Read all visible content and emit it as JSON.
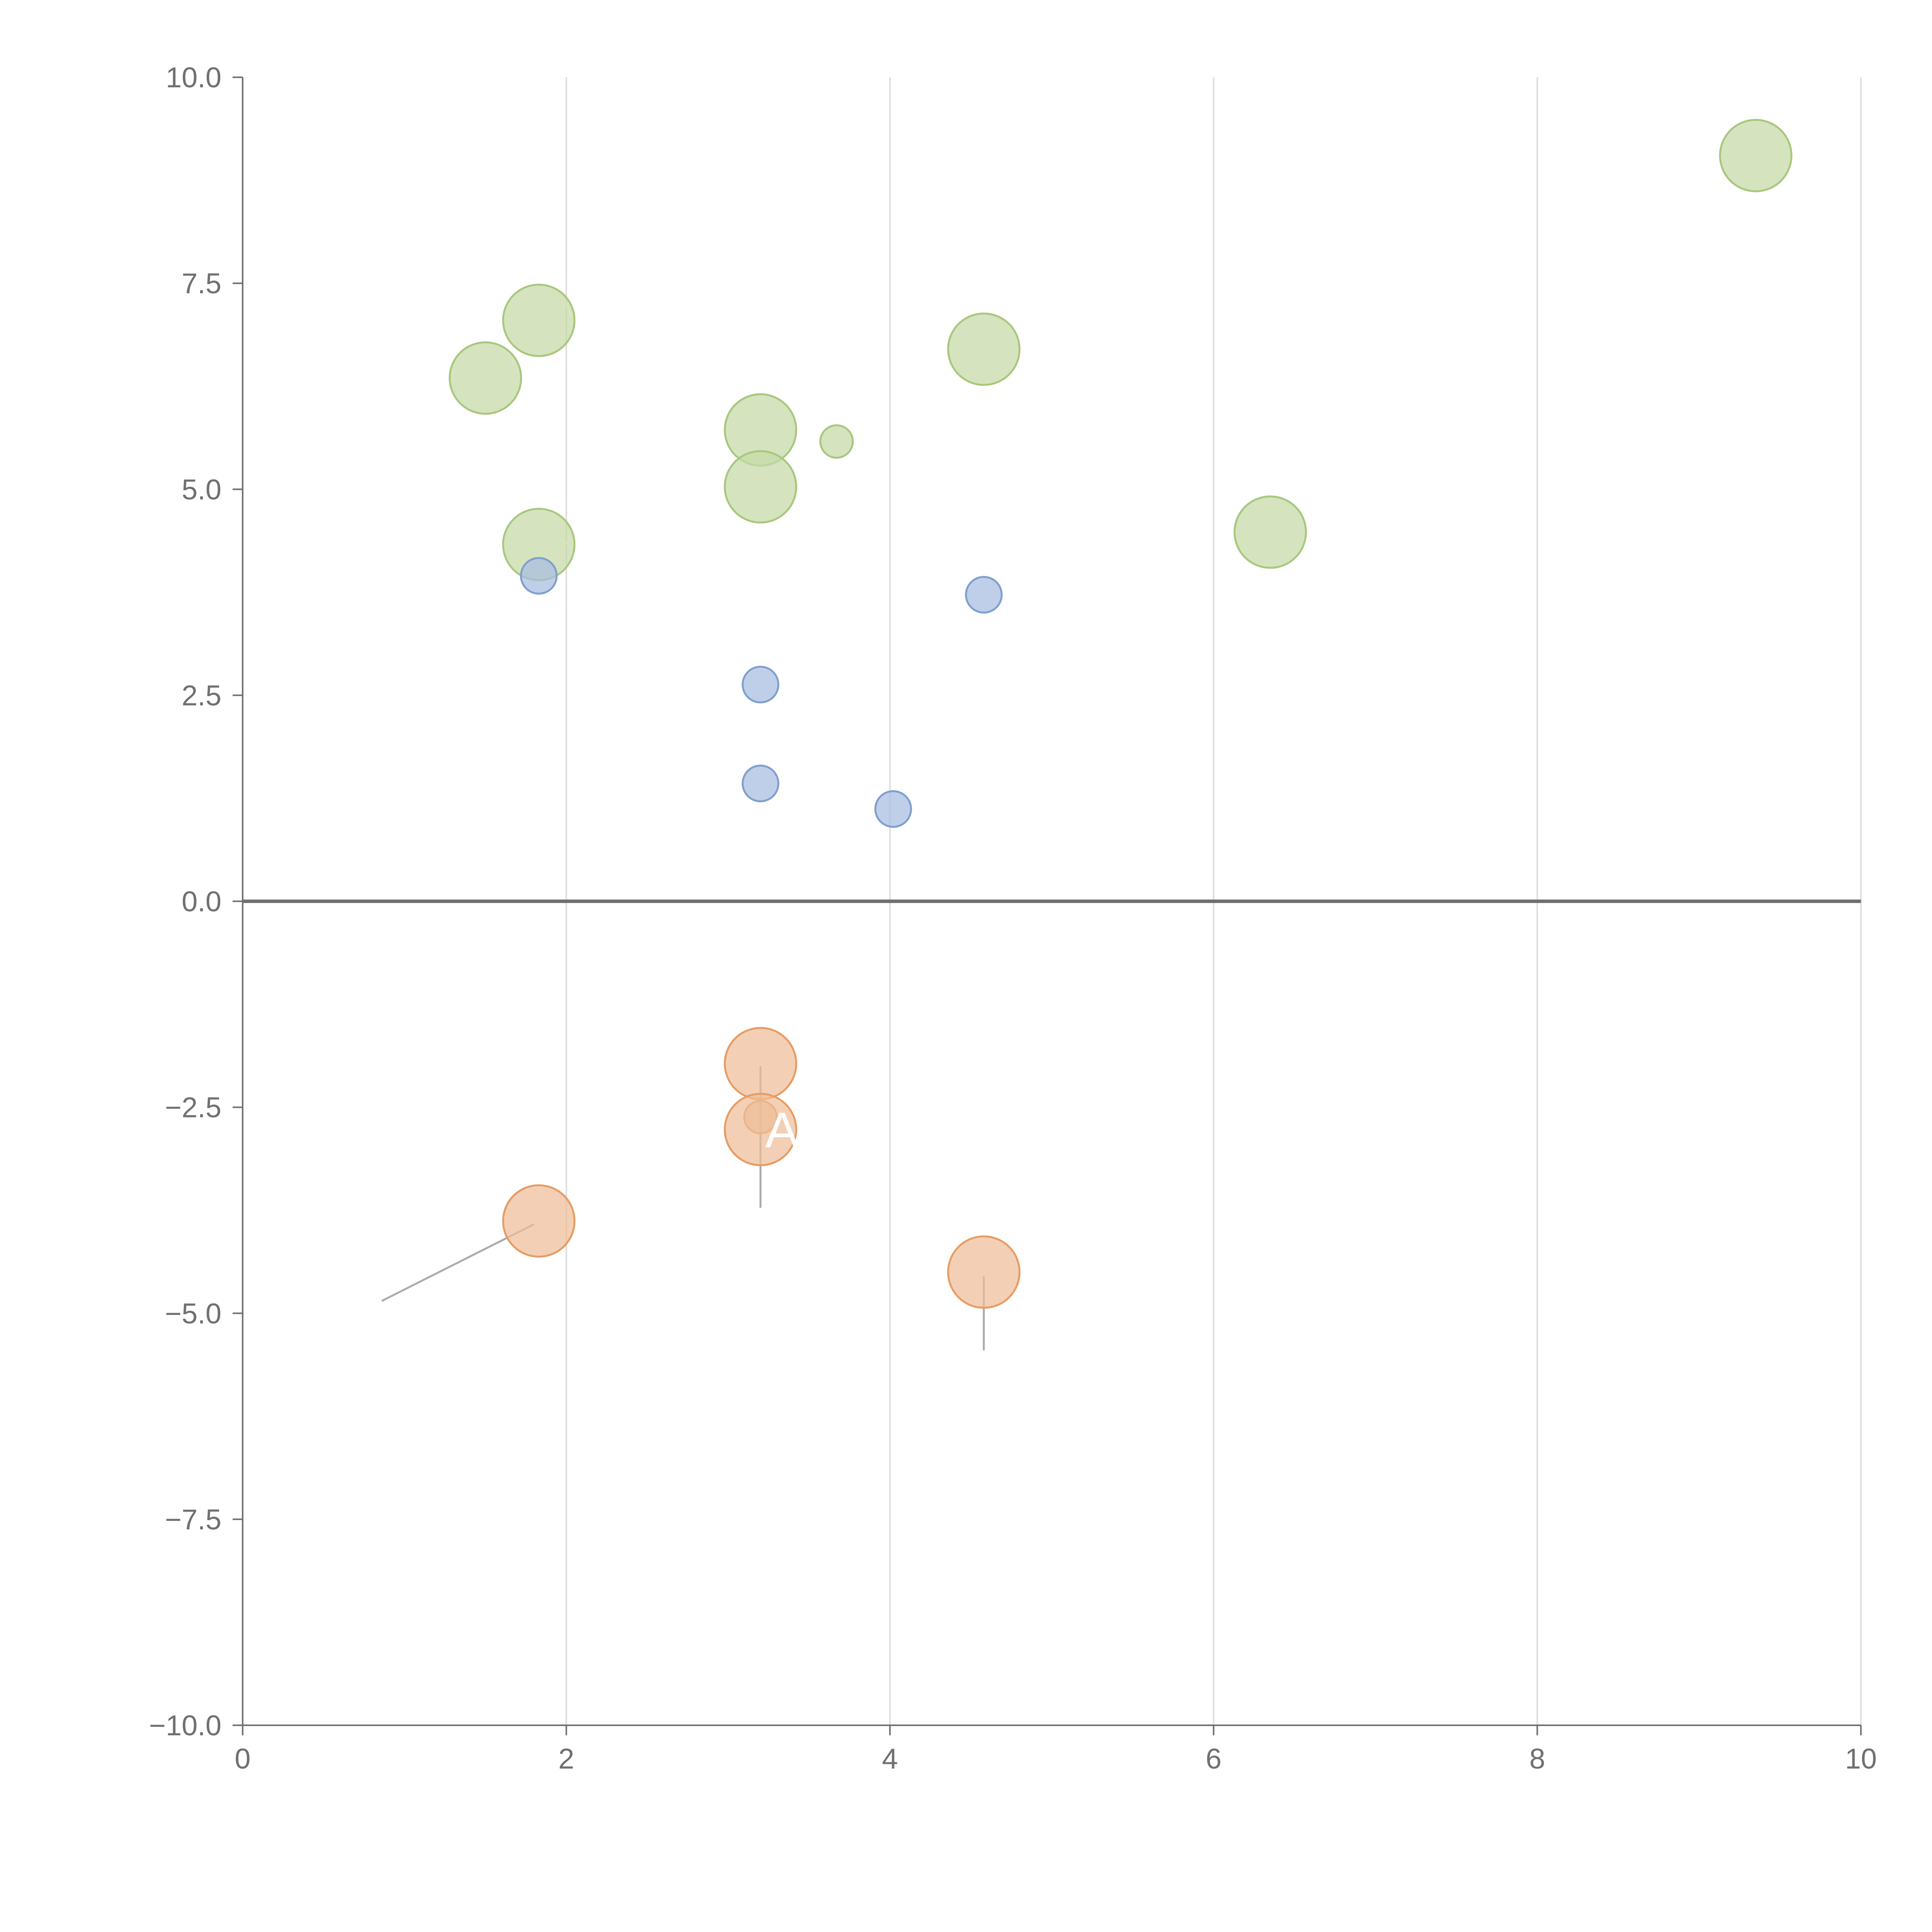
{
  "chart_data": {
    "type": "scatter",
    "title": "",
    "xlabel": "",
    "ylabel": "",
    "xlim": [
      0,
      10
    ],
    "ylim": [
      -10,
      10
    ],
    "x_ticks": [
      0,
      2,
      4,
      6,
      8,
      10
    ],
    "y_ticks": [
      -10,
      -7.5,
      -5,
      -2.5,
      0,
      2.5,
      5,
      7.5,
      10
    ],
    "x_tick_labels": [
      "0",
      "2",
      "4",
      "6",
      "8",
      "10"
    ],
    "y_tick_labels": [
      "−10.0",
      "−7.5",
      "−5.0",
      "−2.5",
      "0.0",
      "2.5",
      "5.0",
      "7.5",
      "10.0"
    ],
    "grid": "vertical",
    "zero_line": true,
    "colors": {
      "green_fill": "#c5daa6",
      "green_stroke": "#a9c77d",
      "blue_fill": "#a7bde0",
      "blue_stroke": "#7f9fcf",
      "orange_fill": "#efbe98",
      "orange_stroke": "#e79c63",
      "axis": "#707070",
      "grid": "#dddddd",
      "leader": "#aaaaaa",
      "label": "#ffffff"
    },
    "series": [
      {
        "name": "green",
        "color_key": "green",
        "points": [
          {
            "x": 9.35,
            "y": 9.05,
            "r": 2.2
          },
          {
            "x": 1.83,
            "y": 7.05,
            "r": 2.2
          },
          {
            "x": 1.5,
            "y": 6.35,
            "r": 2.2
          },
          {
            "x": 4.58,
            "y": 6.7,
            "r": 2.2
          },
          {
            "x": 3.2,
            "y": 5.72,
            "r": 2.2
          },
          {
            "x": 3.67,
            "y": 5.58,
            "r": 1.0
          },
          {
            "x": 3.2,
            "y": 5.03,
            "r": 2.2
          },
          {
            "x": 1.83,
            "y": 4.33,
            "r": 2.2
          },
          {
            "x": 6.35,
            "y": 4.48,
            "r": 2.2
          }
        ]
      },
      {
        "name": "blue",
        "color_key": "blue",
        "points": [
          {
            "x": 1.83,
            "y": 3.95,
            "r": 1.1
          },
          {
            "x": 4.58,
            "y": 3.72,
            "r": 1.1
          },
          {
            "x": 3.2,
            "y": 2.63,
            "r": 1.1
          },
          {
            "x": 3.2,
            "y": 1.43,
            "r": 1.1
          },
          {
            "x": 4.02,
            "y": 1.12,
            "r": 1.1
          }
        ]
      },
      {
        "name": "orange",
        "color_key": "orange",
        "points": [
          {
            "x": 3.2,
            "y": -1.97,
            "r": 2.2
          },
          {
            "x": 3.2,
            "y": -2.62,
            "r": 1.0
          },
          {
            "x": 3.2,
            "y": -2.77,
            "r": 2.2
          },
          {
            "x": 1.83,
            "y": -3.88,
            "r": 2.2
          },
          {
            "x": 4.58,
            "y": -4.5,
            "r": 2.2
          }
        ]
      }
    ],
    "leader_lines": [
      {
        "x1": 3.2,
        "y1": -2.0,
        "x2": 3.2,
        "y2": -3.72,
        "color_key": "leader"
      },
      {
        "x1": 1.8,
        "y1": -3.92,
        "x2": 0.86,
        "y2": -4.85,
        "color_key": "leader"
      },
      {
        "x1": 4.58,
        "y1": -4.55,
        "x2": 4.58,
        "y2": -5.45,
        "color_key": "leader"
      },
      {
        "x1": 1.85,
        "y1": 7.05,
        "x2": 2.02,
        "y2": 7.27,
        "color_key": "label"
      },
      {
        "x1": 1.48,
        "y1": 6.1,
        "x2": 1.5,
        "y2": 6.3,
        "color_key": "label"
      },
      {
        "x1": 1.87,
        "y1": 4.33,
        "x2": 2.05,
        "y2": 4.35,
        "color_key": "label"
      },
      {
        "x1": 3.23,
        "y1": 5.05,
        "x2": 3.42,
        "y2": 5.02,
        "color_key": "label"
      },
      {
        "x1": 9.2,
        "y1": 9.1,
        "x2": 9.33,
        "y2": 9.05,
        "color_key": "label"
      }
    ],
    "labels": [
      {
        "text": "A",
        "x": 3.2,
        "y": -2.77
      }
    ]
  }
}
